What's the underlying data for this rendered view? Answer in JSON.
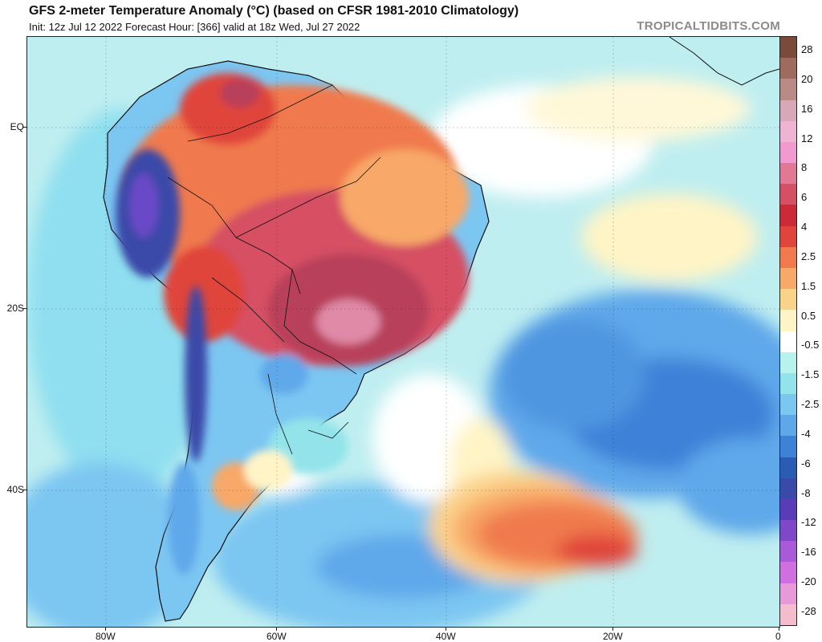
{
  "header": {
    "title": "GFS 2-meter Temperature Anomaly (°C) (based on CFSR 1981-2010 Climatology)",
    "subtitle": "Init: 12z Jul 12 2022   Forecast Hour: [366]   valid at 18z Wed, Jul 27 2022",
    "brand": "TROPICALTIDBITS.COM"
  },
  "axes": {
    "lat_labels": [
      "EQ",
      "20S",
      "40S"
    ],
    "lon_labels": [
      "80W",
      "60W",
      "40W",
      "20W",
      "0"
    ]
  },
  "colorbar": {
    "labels": [
      "28",
      "20",
      "16",
      "12",
      "8",
      "6",
      "4",
      "2.5",
      "1.5",
      "0.5",
      "-0.5",
      "-1.5",
      "-2.5",
      "-4",
      "-6",
      "-8",
      "-12",
      "-16",
      "-20",
      "-28"
    ],
    "colors": [
      "#7a4a3a",
      "#9e6b5e",
      "#b98a86",
      "#d8a7b8",
      "#f0b3d2",
      "#f29ad0",
      "#e27894",
      "#d65064",
      "#cc2a36",
      "#e0443a",
      "#f07a4e",
      "#f8a868",
      "#fbd28a",
      "#fff4c6",
      "#ffffff",
      "#b8f2ee",
      "#92e4ea",
      "#7cc6f2",
      "#5ea8ea",
      "#3e82d8",
      "#2a5cb4",
      "#3a4aa8",
      "#5a3cb8",
      "#7e48c8",
      "#a85ad8",
      "#d070e0",
      "#e89ad8",
      "#f4bccc"
    ]
  },
  "map": {
    "colors": {
      "ocean_base": "#bfeef0",
      "cool_light": "#92e4ea",
      "cool_mid": "#7cc6f2",
      "cool_deep": "#5ea8ea",
      "cool_darker": "#3e82d8",
      "warm_light": "#fff4c6",
      "warm_mid": "#f8a868",
      "warm_orange": "#f07a4e",
      "warm_red": "#d65064",
      "warm_deep": "#b8405a",
      "hot_pink": "#e08aa8",
      "andes_blue": "#3a4aa8",
      "andes_purple": "#6a4ac8"
    }
  }
}
